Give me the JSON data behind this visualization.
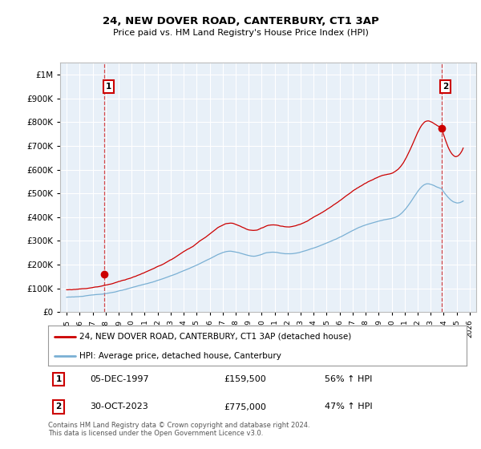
{
  "title": "24, NEW DOVER ROAD, CANTERBURY, CT1 3AP",
  "subtitle": "Price paid vs. HM Land Registry's House Price Index (HPI)",
  "legend_line1": "24, NEW DOVER ROAD, CANTERBURY, CT1 3AP (detached house)",
  "legend_line2": "HPI: Average price, detached house, Canterbury",
  "annotation1_label": "1",
  "annotation1_date": "05-DEC-1997",
  "annotation1_price": "£159,500",
  "annotation1_hpi": "56% ↑ HPI",
  "annotation1_year": 1997.92,
  "annotation1_value": 159500,
  "annotation2_label": "2",
  "annotation2_date": "30-OCT-2023",
  "annotation2_price": "£775,000",
  "annotation2_hpi": "47% ↑ HPI",
  "annotation2_year": 2023.83,
  "annotation2_value": 775000,
  "footer1": "Contains HM Land Registry data © Crown copyright and database right 2024.",
  "footer2": "This data is licensed under the Open Government Licence v3.0.",
  "red_color": "#cc0000",
  "blue_color": "#7ab0d4",
  "background_color": "#ffffff",
  "chart_bg": "#e8f0f8",
  "grid_color": "#ffffff",
  "ylim": [
    0,
    1050000
  ],
  "xlim": [
    1994.5,
    2026.5
  ]
}
